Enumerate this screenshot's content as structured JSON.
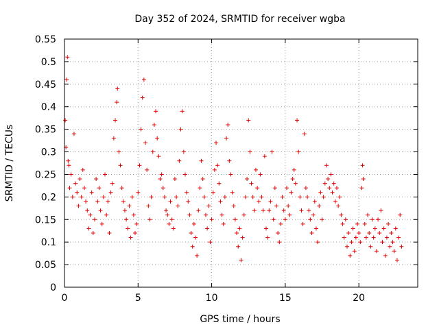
{
  "chart_data": {
    "type": "scatter",
    "title": "Day 352 of 2024, SRMTID for receiver wgba",
    "xlabel": "GPS time / hours",
    "ylabel": "SRMTID / TECUs",
    "xlim": [
      0,
      24
    ],
    "ylim": [
      0,
      0.55
    ],
    "xticks": [
      0,
      5,
      10,
      15,
      20
    ],
    "yticks": [
      0,
      0.05,
      0.1,
      0.15,
      0.2,
      0.25,
      0.3,
      0.35,
      0.4,
      0.45,
      0.5,
      0.55
    ],
    "grid": true,
    "marker": "+",
    "color": "#e00000",
    "series": [
      {
        "name": "SRMTID",
        "points": [
          [
            0.05,
            0.37
          ],
          [
            0.1,
            0.31
          ],
          [
            0.15,
            0.46
          ],
          [
            0.2,
            0.51
          ],
          [
            0.25,
            0.28
          ],
          [
            0.3,
            0.27
          ],
          [
            0.35,
            0.22
          ],
          [
            0.45,
            0.25
          ],
          [
            0.55,
            0.2
          ],
          [
            0.65,
            0.34
          ],
          [
            0.75,
            0.23
          ],
          [
            0.85,
            0.21
          ],
          [
            0.95,
            0.18
          ],
          [
            1.05,
            0.24
          ],
          [
            1.15,
            0.2
          ],
          [
            1.25,
            0.26
          ],
          [
            1.35,
            0.22
          ],
          [
            1.45,
            0.19
          ],
          [
            1.55,
            0.17
          ],
          [
            1.65,
            0.13
          ],
          [
            1.75,
            0.16
          ],
          [
            1.85,
            0.21
          ],
          [
            1.95,
            0.12
          ],
          [
            2.05,
            0.15
          ],
          [
            2.15,
            0.24
          ],
          [
            2.25,
            0.19
          ],
          [
            2.35,
            0.22
          ],
          [
            2.45,
            0.17
          ],
          [
            2.55,
            0.14
          ],
          [
            2.65,
            0.2
          ],
          [
            2.75,
            0.25
          ],
          [
            2.85,
            0.16
          ],
          [
            2.95,
            0.19
          ],
          [
            3.05,
            0.12
          ],
          [
            3.15,
            0.21
          ],
          [
            3.25,
            0.23
          ],
          [
            3.35,
            0.33
          ],
          [
            3.45,
            0.37
          ],
          [
            3.55,
            0.41
          ],
          [
            3.6,
            0.44
          ],
          [
            3.7,
            0.3
          ],
          [
            3.8,
            0.27
          ],
          [
            3.9,
            0.22
          ],
          [
            4.0,
            0.19
          ],
          [
            4.1,
            0.17
          ],
          [
            4.2,
            0.15
          ],
          [
            4.3,
            0.13
          ],
          [
            4.4,
            0.18
          ],
          [
            4.5,
            0.11
          ],
          [
            4.6,
            0.2
          ],
          [
            4.7,
            0.16
          ],
          [
            4.8,
            0.12
          ],
          [
            4.9,
            0.14
          ],
          [
            5.0,
            0.21
          ],
          [
            5.1,
            0.27
          ],
          [
            5.2,
            0.35
          ],
          [
            5.3,
            0.42
          ],
          [
            5.4,
            0.46
          ],
          [
            5.5,
            0.32
          ],
          [
            5.6,
            0.26
          ],
          [
            5.7,
            0.18
          ],
          [
            5.8,
            0.15
          ],
          [
            5.9,
            0.2
          ],
          [
            6.0,
            0.3
          ],
          [
            6.1,
            0.36
          ],
          [
            6.2,
            0.39
          ],
          [
            6.3,
            0.33
          ],
          [
            6.4,
            0.29
          ],
          [
            6.5,
            0.24
          ],
          [
            6.6,
            0.25
          ],
          [
            6.7,
            0.22
          ],
          [
            6.8,
            0.2
          ],
          [
            6.9,
            0.17
          ],
          [
            7.0,
            0.16
          ],
          [
            7.1,
            0.14
          ],
          [
            7.2,
            0.19
          ],
          [
            7.3,
            0.15
          ],
          [
            7.4,
            0.13
          ],
          [
            7.5,
            0.24
          ],
          [
            7.6,
            0.2
          ],
          [
            7.7,
            0.18
          ],
          [
            7.8,
            0.28
          ],
          [
            7.9,
            0.35
          ],
          [
            8.0,
            0.39
          ],
          [
            8.1,
            0.3
          ],
          [
            8.2,
            0.25
          ],
          [
            8.3,
            0.21
          ],
          [
            8.4,
            0.19
          ],
          [
            8.5,
            0.16
          ],
          [
            8.6,
            0.12
          ],
          [
            8.7,
            0.09
          ],
          [
            8.8,
            0.14
          ],
          [
            8.9,
            0.11
          ],
          [
            9.0,
            0.07
          ],
          [
            9.1,
            0.17
          ],
          [
            9.2,
            0.22
          ],
          [
            9.3,
            0.28
          ],
          [
            9.4,
            0.24
          ],
          [
            9.5,
            0.2
          ],
          [
            9.6,
            0.16
          ],
          [
            9.7,
            0.13
          ],
          [
            9.8,
            0.18
          ],
          [
            9.9,
            0.1
          ],
          [
            10.0,
            0.15
          ],
          [
            10.1,
            0.21
          ],
          [
            10.2,
            0.26
          ],
          [
            10.3,
            0.32
          ],
          [
            10.4,
            0.27
          ],
          [
            10.5,
            0.23
          ],
          [
            10.6,
            0.19
          ],
          [
            10.7,
            0.16
          ],
          [
            10.8,
            0.14
          ],
          [
            10.9,
            0.2
          ],
          [
            11.0,
            0.33
          ],
          [
            11.1,
            0.36
          ],
          [
            11.2,
            0.28
          ],
          [
            11.3,
            0.25
          ],
          [
            11.4,
            0.21
          ],
          [
            11.5,
            0.18
          ],
          [
            11.6,
            0.15
          ],
          [
            11.7,
            0.12
          ],
          [
            11.8,
            0.09
          ],
          [
            11.9,
            0.13
          ],
          [
            12.0,
            0.06
          ],
          [
            12.1,
            0.11
          ],
          [
            12.2,
            0.16
          ],
          [
            12.3,
            0.2
          ],
          [
            12.4,
            0.24
          ],
          [
            12.5,
            0.37
          ],
          [
            12.6,
            0.3
          ],
          [
            12.7,
            0.23
          ],
          [
            12.8,
            0.2
          ],
          [
            12.9,
            0.17
          ],
          [
            13.0,
            0.26
          ],
          [
            13.1,
            0.22
          ],
          [
            13.2,
            0.19
          ],
          [
            13.3,
            0.25
          ],
          [
            13.4,
            0.2
          ],
          [
            13.5,
            0.17
          ],
          [
            13.6,
            0.29
          ],
          [
            13.7,
            0.13
          ],
          [
            13.8,
            0.11
          ],
          [
            13.9,
            0.17
          ],
          [
            14.0,
            0.19
          ],
          [
            14.1,
            0.3
          ],
          [
            14.2,
            0.15
          ],
          [
            14.3,
            0.22
          ],
          [
            14.4,
            0.18
          ],
          [
            14.5,
            0.12
          ],
          [
            14.6,
            0.1
          ],
          [
            14.7,
            0.14
          ],
          [
            14.8,
            0.2
          ],
          [
            14.9,
            0.17
          ],
          [
            15.0,
            0.15
          ],
          [
            15.1,
            0.22
          ],
          [
            15.2,
            0.18
          ],
          [
            15.3,
            0.16
          ],
          [
            15.4,
            0.21
          ],
          [
            15.5,
            0.24
          ],
          [
            15.6,
            0.26
          ],
          [
            15.7,
            0.23
          ],
          [
            15.8,
            0.37
          ],
          [
            15.9,
            0.3
          ],
          [
            16.0,
            0.2
          ],
          [
            16.1,
            0.17
          ],
          [
            16.2,
            0.14
          ],
          [
            16.3,
            0.34
          ],
          [
            16.4,
            0.22
          ],
          [
            16.5,
            0.2
          ],
          [
            16.6,
            0.17
          ],
          [
            16.7,
            0.15
          ],
          [
            16.8,
            0.12
          ],
          [
            16.9,
            0.16
          ],
          [
            17.0,
            0.19
          ],
          [
            17.1,
            0.13
          ],
          [
            17.2,
            0.1
          ],
          [
            17.3,
            0.18
          ],
          [
            17.4,
            0.21
          ],
          [
            17.5,
            0.15
          ],
          [
            17.6,
            0.2
          ],
          [
            17.7,
            0.23
          ],
          [
            17.8,
            0.27
          ],
          [
            17.9,
            0.24
          ],
          [
            18.0,
            0.22
          ],
          [
            18.1,
            0.25
          ],
          [
            18.2,
            0.21
          ],
          [
            18.3,
            0.23
          ],
          [
            18.4,
            0.19
          ],
          [
            18.5,
            0.22
          ],
          [
            18.6,
            0.18
          ],
          [
            18.7,
            0.2
          ],
          [
            18.8,
            0.16
          ],
          [
            18.9,
            0.14
          ],
          [
            19.0,
            0.11
          ],
          [
            19.1,
            0.15
          ],
          [
            19.2,
            0.09
          ],
          [
            19.3,
            0.12
          ],
          [
            19.4,
            0.07
          ],
          [
            19.5,
            0.1
          ],
          [
            19.6,
            0.13
          ],
          [
            19.7,
            0.08
          ],
          [
            19.8,
            0.11
          ],
          [
            19.9,
            0.14
          ],
          [
            20.0,
            0.12
          ],
          [
            20.1,
            0.1
          ],
          [
            20.2,
            0.22
          ],
          [
            20.25,
            0.27
          ],
          [
            20.3,
            0.24
          ],
          [
            20.4,
            0.14
          ],
          [
            20.5,
            0.11
          ],
          [
            20.6,
            0.16
          ],
          [
            20.7,
            0.12
          ],
          [
            20.8,
            0.09
          ],
          [
            20.9,
            0.15
          ],
          [
            21.0,
            0.11
          ],
          [
            21.1,
            0.13
          ],
          [
            21.2,
            0.08
          ],
          [
            21.3,
            0.15
          ],
          [
            21.4,
            0.12
          ],
          [
            21.5,
            0.17
          ],
          [
            21.6,
            0.1
          ],
          [
            21.7,
            0.13
          ],
          [
            21.8,
            0.07
          ],
          [
            21.9,
            0.11
          ],
          [
            22.0,
            0.14
          ],
          [
            22.1,
            0.09
          ],
          [
            22.2,
            0.12
          ],
          [
            22.3,
            0.1
          ],
          [
            22.4,
            0.08
          ],
          [
            22.5,
            0.13
          ],
          [
            22.6,
            0.06
          ],
          [
            22.7,
            0.11
          ],
          [
            22.8,
            0.16
          ],
          [
            22.9,
            0.09
          ]
        ]
      }
    ]
  }
}
